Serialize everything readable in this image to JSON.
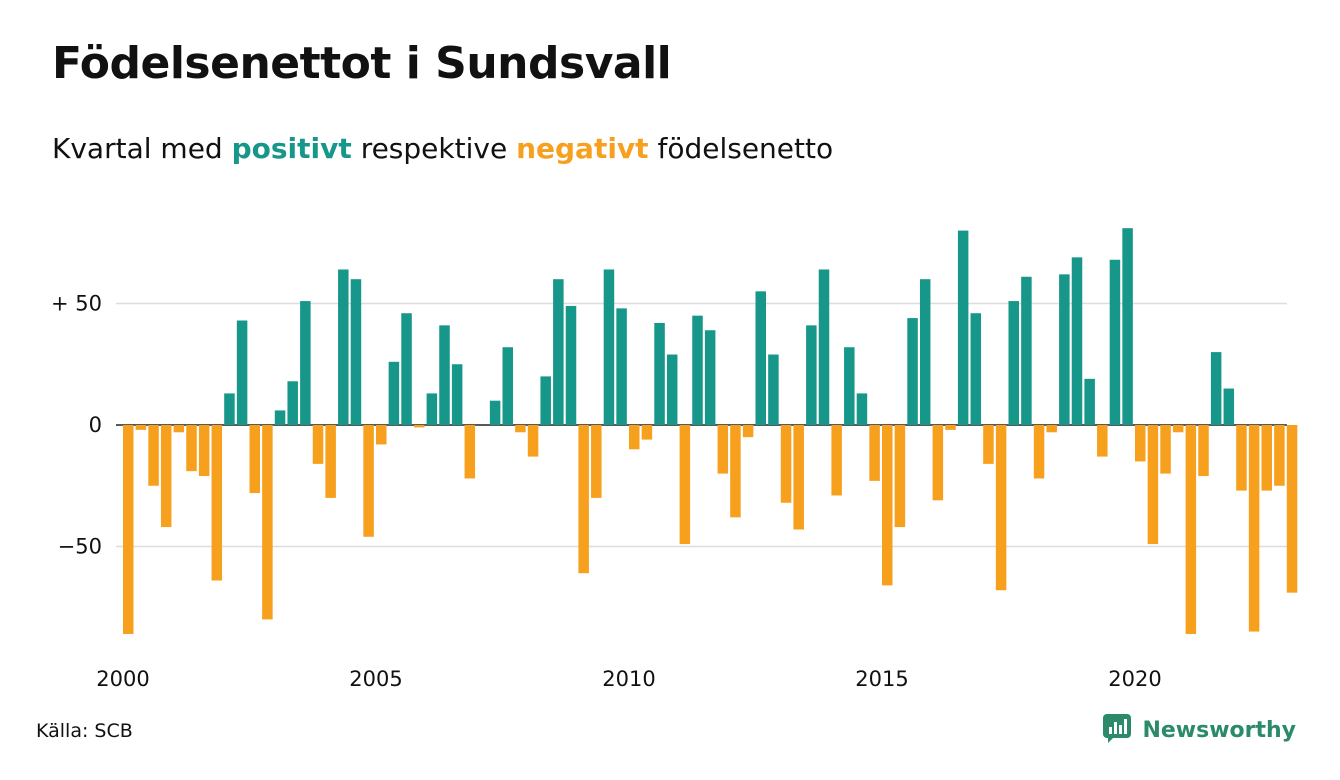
{
  "title": "Födelsenettot i Sundsvall",
  "subtitle": {
    "prefix": "Kvartal med",
    "positive_word": "positivt",
    "middle": "respektive",
    "negative_word": "negativt",
    "suffix": "födelsenetto"
  },
  "source": "Källa: SCB",
  "brand": {
    "name": "Newsworthy",
    "icon": "newsworthy-logo-icon"
  },
  "colors": {
    "positive": "#17968a",
    "negative": "#f6a01e",
    "grid": "#dddddd",
    "text": "#111111",
    "brand": "#2a8a6a"
  },
  "chart_data": {
    "type": "bar",
    "x_start": "2000 Q1",
    "categories": [
      "2000 Q1",
      "2000 Q2",
      "2000 Q3",
      "2000 Q4",
      "2001 Q1",
      "2001 Q2",
      "2001 Q3",
      "2001 Q4",
      "2002 Q1",
      "2002 Q2",
      "2002 Q3",
      "2002 Q4",
      "2003 Q1",
      "2003 Q2",
      "2003 Q3",
      "2003 Q4",
      "2004 Q1",
      "2004 Q2",
      "2004 Q3",
      "2004 Q4",
      "2005 Q1",
      "2005 Q2",
      "2005 Q3",
      "2005 Q4",
      "2006 Q1",
      "2006 Q2",
      "2006 Q3",
      "2006 Q4",
      "2007 Q1",
      "2007 Q2",
      "2007 Q3",
      "2007 Q4",
      "2008 Q1",
      "2008 Q2",
      "2008 Q3",
      "2008 Q4",
      "2009 Q1",
      "2009 Q2",
      "2009 Q3",
      "2009 Q4",
      "2010 Q1",
      "2010 Q2",
      "2010 Q3",
      "2010 Q4",
      "2011 Q1",
      "2011 Q2",
      "2011 Q3",
      "2011 Q4",
      "2012 Q1",
      "2012 Q2",
      "2012 Q3",
      "2012 Q4",
      "2013 Q1",
      "2013 Q2",
      "2013 Q3",
      "2013 Q4",
      "2014 Q1",
      "2014 Q2",
      "2014 Q3",
      "2014 Q4",
      "2015 Q1",
      "2015 Q2",
      "2015 Q3",
      "2015 Q4",
      "2016 Q1",
      "2016 Q2",
      "2016 Q3",
      "2016 Q4",
      "2017 Q1",
      "2017 Q2",
      "2017 Q3",
      "2017 Q4",
      "2018 Q1",
      "2018 Q2",
      "2018 Q3",
      "2018 Q4",
      "2019 Q1",
      "2019 Q2",
      "2019 Q3",
      "2019 Q4",
      "2020 Q1",
      "2020 Q2",
      "2020 Q3",
      "2020 Q4",
      "2021 Q1",
      "2021 Q2",
      "2021 Q3",
      "2021 Q4",
      "2022 Q1",
      "2022 Q2",
      "2022 Q3",
      "2022 Q4",
      "2023 Q1"
    ],
    "values": [
      -86,
      -2,
      -25,
      -42,
      -3,
      -19,
      -21,
      -64,
      13,
      43,
      -28,
      -80,
      6,
      18,
      51,
      -16,
      -30,
      64,
      60,
      -46,
      -8,
      26,
      46,
      -1,
      13,
      41,
      25,
      -22,
      0,
      10,
      32,
      -3,
      -13,
      20,
      60,
      49,
      -61,
      -30,
      64,
      48,
      -10,
      -6,
      42,
      29,
      -49,
      45,
      39,
      -20,
      -38,
      -5,
      55,
      29,
      -32,
      -43,
      41,
      64,
      -29,
      32,
      13,
      -23,
      -66,
      -42,
      44,
      60,
      -31,
      -2,
      80,
      46,
      -16,
      -68,
      51,
      61,
      -22,
      -3,
      62,
      69,
      19,
      -13,
      68,
      81,
      -15,
      -49,
      -20,
      -3,
      -86,
      -21,
      30,
      15,
      -27,
      -85,
      -27,
      -25,
      -69
    ],
    "y_ticks": [
      {
        "value": 50,
        "label": "+ 50"
      },
      {
        "value": 0,
        "label": "0"
      },
      {
        "value": -50,
        "label": "−50"
      }
    ],
    "x_ticks": [
      {
        "year": 2000,
        "label": "2000"
      },
      {
        "year": 2005,
        "label": "2005"
      },
      {
        "year": 2010,
        "label": "2010"
      },
      {
        "year": 2015,
        "label": "2015"
      },
      {
        "year": 2020,
        "label": "2020"
      }
    ],
    "ylim": [
      -90,
      85
    ],
    "grid": true,
    "xlabel": "",
    "ylabel": ""
  }
}
